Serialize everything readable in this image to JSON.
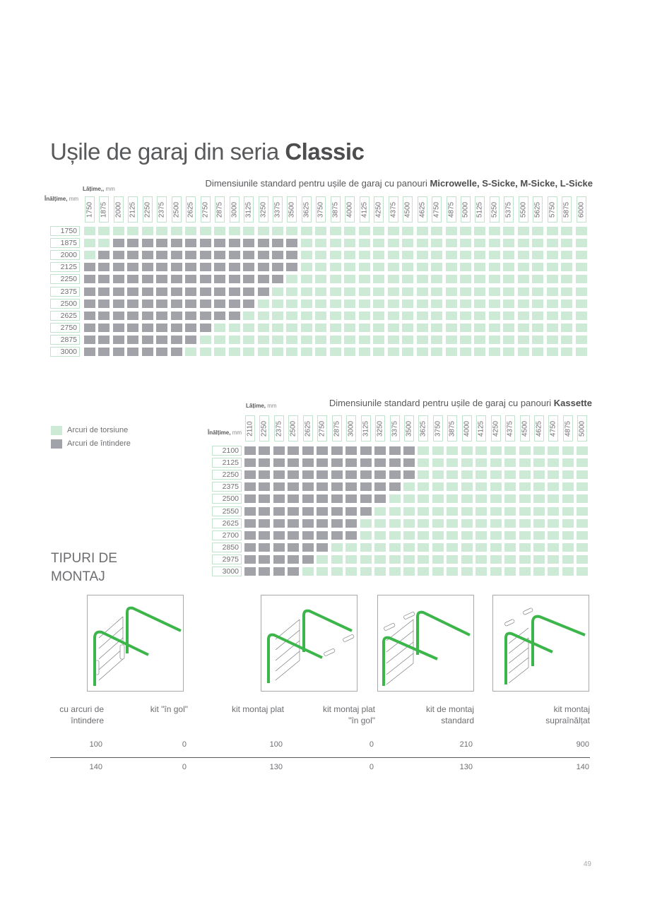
{
  "page": {
    "title_prefix": "Ușile de garaj din seria ",
    "title_bold": "Classic",
    "page_number": "49"
  },
  "colors": {
    "torsion": "#cdead7",
    "extension": "#a2a3a8",
    "frame_green": "#bfe3cc",
    "rail_green": "#3cb54a",
    "text": "#58595b"
  },
  "table_classic": {
    "subtitle_prefix": "Dimensiunile standard pentru ușile de garaj cu panouri ",
    "subtitle_bold": "Microwelle, S-Sicke, M-Sicke, L-Sicke",
    "width_label": "Lățime,",
    "width_label_extra": ",",
    "width_unit": "mm",
    "height_label": "Înălțime,",
    "height_unit": "mm",
    "widths": [
      "1750",
      "1875",
      "2000",
      "2125",
      "2250",
      "2375",
      "2500",
      "2625",
      "2750",
      "2875",
      "3000",
      "3125",
      "3250",
      "3375",
      "3500",
      "3625",
      "3750",
      "3875",
      "4000",
      "4125",
      "4250",
      "4375",
      "4500",
      "4625",
      "4750",
      "4875",
      "5000",
      "5125",
      "5250",
      "5375",
      "5500",
      "5625",
      "5750",
      "5875",
      "6000"
    ],
    "rows": [
      {
        "height": "1750",
        "extension_from": -1,
        "extension_to": -1
      },
      {
        "height": "1875",
        "extension_from": 2,
        "extension_to": 14
      },
      {
        "height": "2000",
        "extension_from": 1,
        "extension_to": 14
      },
      {
        "height": "2125",
        "extension_from": 0,
        "extension_to": 14
      },
      {
        "height": "2250",
        "extension_from": 0,
        "extension_to": 13
      },
      {
        "height": "2375",
        "extension_from": 0,
        "extension_to": 12
      },
      {
        "height": "2500",
        "extension_from": 0,
        "extension_to": 11
      },
      {
        "height": "2625",
        "extension_from": 0,
        "extension_to": 10
      },
      {
        "height": "2750",
        "extension_from": 0,
        "extension_to": 8
      },
      {
        "height": "2875",
        "extension_from": 0,
        "extension_to": 7
      },
      {
        "height": "3000",
        "extension_from": 0,
        "extension_to": 6
      }
    ]
  },
  "table_kassette": {
    "subtitle_prefix": "Dimensiunile standard pentru ușile de garaj cu panouri  ",
    "subtitle_bold": "Kassette",
    "width_label": "Lățime,",
    "width_unit": "mm",
    "height_label": "Înălțime,",
    "height_unit": "mm",
    "widths": [
      "2110",
      "2250",
      "2375",
      "2500",
      "2625",
      "2750",
      "2875",
      "3000",
      "3125",
      "3250",
      "3375",
      "3500",
      "3625",
      "3750",
      "3875",
      "4000",
      "4125",
      "4250",
      "4375",
      "4500",
      "4625",
      "4750",
      "4875",
      "5000"
    ],
    "rows": [
      {
        "height": "2100",
        "extension_from": 0,
        "extension_to": 11
      },
      {
        "height": "2125",
        "extension_from": 0,
        "extension_to": 11
      },
      {
        "height": "2250",
        "extension_from": 0,
        "extension_to": 11
      },
      {
        "height": "2375",
        "extension_from": 0,
        "extension_to": 10
      },
      {
        "height": "2500",
        "extension_from": 0,
        "extension_to": 9
      },
      {
        "height": "2550",
        "extension_from": 0,
        "extension_to": 8
      },
      {
        "height": "2625",
        "extension_from": 0,
        "extension_to": 7
      },
      {
        "height": "2700",
        "extension_from": 0,
        "extension_to": 7
      },
      {
        "height": "2850",
        "extension_from": 0,
        "extension_to": 5
      },
      {
        "height": "2975",
        "extension_from": 0,
        "extension_to": 4
      },
      {
        "height": "3000",
        "extension_from": 0,
        "extension_to": 3
      }
    ]
  },
  "legend": [
    {
      "label": "Arcuri de torsiune",
      "key": "torsion"
    },
    {
      "label": "Arcuri de întindere",
      "key": "extension"
    }
  ],
  "mounting": {
    "title_line1": "TIPURI DE",
    "title_line2": "MONTAJ",
    "columns": [
      {
        "label_line1": "cu arcuri de",
        "label_line2": "întindere",
        "value_top": "100",
        "value_bottom": "140"
      },
      {
        "label_line1": "kit \"în gol\"",
        "label_line2": "",
        "value_top": "0",
        "value_bottom": "0"
      },
      {
        "label_line1": "kit montaj plat",
        "label_line2": "",
        "value_top": "100",
        "value_bottom": "130"
      },
      {
        "label_line1": "kit montaj plat",
        "label_line2": "\"în gol\"",
        "value_top": "0",
        "value_bottom": "0"
      },
      {
        "label_line1": "kit de montaj",
        "label_line2": "standard",
        "value_top": "210",
        "value_bottom": "130"
      },
      {
        "label_line1": "kit montaj",
        "label_line2": "supraînălțat",
        "value_top": "900",
        "value_bottom": "140"
      }
    ],
    "diagrams": [
      {
        "name": "extension-spring-mount-diagram"
      },
      {
        "name": "flat-mount-kit-diagram"
      },
      {
        "name": "standard-mount-kit-diagram"
      },
      {
        "name": "high-lift-mount-kit-diagram"
      }
    ]
  }
}
